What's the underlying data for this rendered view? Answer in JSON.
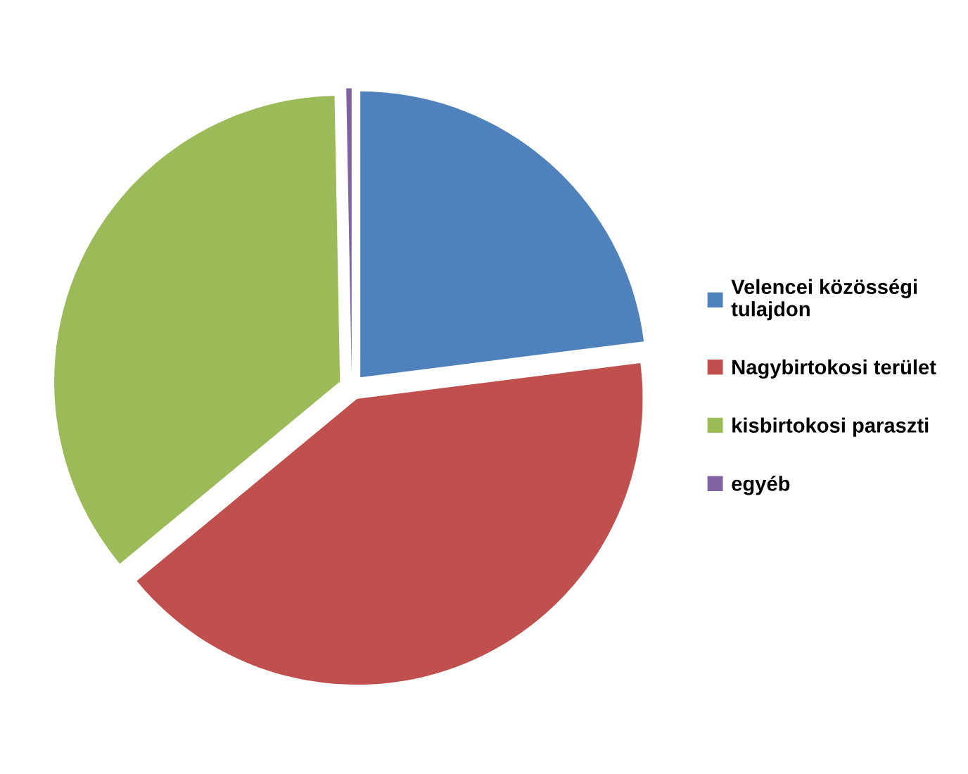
{
  "chart_data": {
    "type": "pie",
    "categories": [
      "Velencei közösségi tulajdon",
      "Nagybirtokosi terület",
      "kisbirtokosi paraszti",
      "egyéb"
    ],
    "values": [
      23,
      41,
      35.7,
      0.3
    ],
    "colors": [
      "#4f81bd",
      "#c0504d",
      "#9bbb59",
      "#8064a2"
    ],
    "legend": "right"
  }
}
